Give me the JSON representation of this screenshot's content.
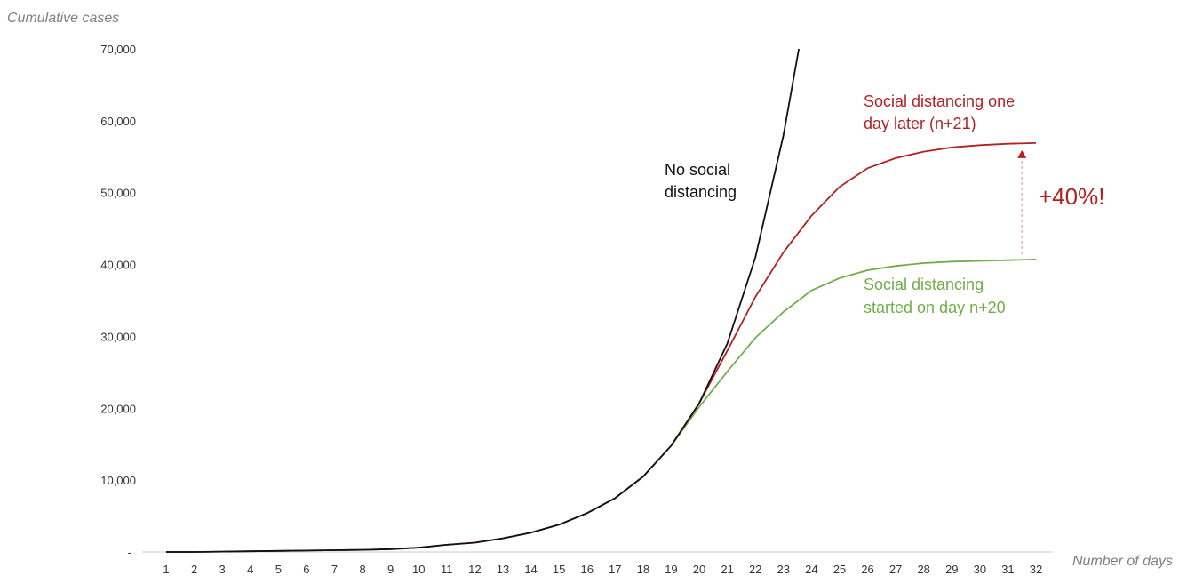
{
  "chart_data": {
    "type": "line",
    "ylabel": "Cumulative cases",
    "xlabel": "Number of days",
    "x": [
      1,
      2,
      3,
      4,
      5,
      6,
      7,
      8,
      9,
      10,
      11,
      12,
      13,
      14,
      15,
      16,
      17,
      18,
      19,
      20,
      21,
      22,
      23,
      24,
      25,
      26,
      27,
      28,
      29,
      30,
      31,
      32
    ],
    "xlim": [
      1,
      32
    ],
    "ylim": [
      0,
      70000
    ],
    "yticks": [
      {
        "value": 0,
        "label": "-"
      },
      {
        "value": 10000,
        "label": "10,000"
      },
      {
        "value": 20000,
        "label": "20,000"
      },
      {
        "value": 30000,
        "label": "30,000"
      },
      {
        "value": 40000,
        "label": "40,000"
      },
      {
        "value": 50000,
        "label": "50,000"
      },
      {
        "value": 60000,
        "label": "60,000"
      },
      {
        "value": 70000,
        "label": "70,000"
      }
    ],
    "grid": false,
    "series": [
      {
        "key": "no_distancing",
        "color": "#111111",
        "points": [
          [
            1,
            0
          ],
          [
            2,
            0
          ],
          [
            3,
            50
          ],
          [
            4,
            100
          ],
          [
            5,
            150
          ],
          [
            6,
            200
          ],
          [
            7,
            250
          ],
          [
            8,
            300
          ],
          [
            9,
            400
          ],
          [
            10,
            600
          ],
          [
            11,
            1000
          ],
          [
            12,
            1300
          ],
          [
            13,
            1900
          ],
          [
            14,
            2700
          ],
          [
            15,
            3800
          ],
          [
            16,
            5400
          ],
          [
            17,
            7500
          ],
          [
            18,
            10500
          ],
          [
            19,
            14800
          ],
          [
            20,
            20700
          ],
          [
            21,
            29000
          ],
          [
            22,
            41000
          ],
          [
            23,
            58000
          ],
          [
            23.55,
            70000
          ]
        ]
      },
      {
        "key": "day_21",
        "color": "#b22222",
        "points": [
          [
            1,
            0
          ],
          [
            2,
            0
          ],
          [
            3,
            50
          ],
          [
            4,
            100
          ],
          [
            5,
            150
          ],
          [
            6,
            200
          ],
          [
            7,
            250
          ],
          [
            8,
            300
          ],
          [
            9,
            400
          ],
          [
            10,
            600
          ],
          [
            11,
            1000
          ],
          [
            12,
            1300
          ],
          [
            13,
            1900
          ],
          [
            14,
            2700
          ],
          [
            15,
            3800
          ],
          [
            16,
            5400
          ],
          [
            17,
            7500
          ],
          [
            18,
            10500
          ],
          [
            19,
            14800
          ],
          [
            20,
            20700
          ],
          [
            21,
            28000
          ],
          [
            22,
            35500
          ],
          [
            23,
            41700
          ],
          [
            24,
            46800
          ],
          [
            25,
            50800
          ],
          [
            26,
            53400
          ],
          [
            27,
            54800
          ],
          [
            28,
            55700
          ],
          [
            29,
            56300
          ],
          [
            30,
            56600
          ],
          [
            31,
            56800
          ],
          [
            32,
            56900
          ]
        ]
      },
      {
        "key": "day_20",
        "color": "#70ad47",
        "points": [
          [
            19,
            14800
          ],
          [
            20,
            20200
          ],
          [
            21,
            25100
          ],
          [
            22,
            29800
          ],
          [
            23,
            33400
          ],
          [
            24,
            36400
          ],
          [
            25,
            38100
          ],
          [
            26,
            39200
          ],
          [
            27,
            39800
          ],
          [
            28,
            40200
          ],
          [
            29,
            40400
          ],
          [
            30,
            40500
          ],
          [
            31,
            40600
          ],
          [
            32,
            40700
          ]
        ]
      }
    ],
    "annotations": {
      "no_distancing_line1": "No social",
      "no_distancing_line2": "distancing",
      "day21_line1": "Social distancing one",
      "day21_line2": "day later (n+21)",
      "day20_line1": "Social distancing",
      "day20_line2": "started on day n+20",
      "increase": "+40%!"
    },
    "colors": {
      "black": "#111111",
      "red": "#b22222",
      "green": "#70ad47",
      "arrow": "#e8a0a0"
    }
  }
}
